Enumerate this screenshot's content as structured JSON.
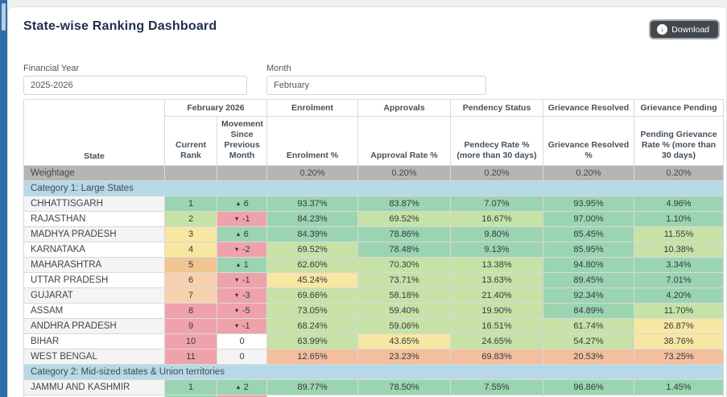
{
  "page": {
    "title": "State-wise Ranking Dashboard",
    "download_label": "Download"
  },
  "filters": {
    "financial_year_label": "Financial Year",
    "financial_year_value": "2025-2026",
    "month_label": "Month",
    "month_value": "February"
  },
  "palette": {
    "teal": "#9bd4b1",
    "palegreen": "#c6e2a7",
    "yellow": "#f7e7a2",
    "orange": "#f0c591",
    "peach": "#f7d0ad",
    "red": "#f0a2aa",
    "salmon": "#f3bf9c",
    "weightage_bg": "#b5b5b5",
    "category_bg": "#b7d9e6",
    "accent_blue": "#2e6da6"
  },
  "table": {
    "header": {
      "state": "State",
      "period": "February 2026",
      "sub": {
        "current_rank": "Current Rank",
        "movement": "Movement Since Previous Month"
      },
      "groups": [
        "Enrolment",
        "Approvals",
        "Pendency Status",
        "Grievance Resolved",
        "Grievance Pending"
      ],
      "metrics": [
        "Enrolment %",
        "Approval Rate %",
        "Pendecy Rate % (more than 30 days)",
        "Grievance Resolved %",
        "Pending Grievance Rate % (more than 30 days)"
      ]
    },
    "weightage": {
      "label": "Weightage",
      "values": [
        "0.20%",
        "0.20%",
        "0.20%",
        "0.20%",
        "0.20%"
      ]
    },
    "categories": [
      {
        "label": "Category 1: Large States",
        "rows": [
          {
            "state": "CHHATTISGARH",
            "rank": "1",
            "rank_color": "teal",
            "movement": "6",
            "movement_dir": "up",
            "movement_color": "teal",
            "cells": [
              {
                "v": "93.37%",
                "c": "teal"
              },
              {
                "v": "83.87%",
                "c": "teal"
              },
              {
                "v": "7.07%",
                "c": "teal"
              },
              {
                "v": "93.95%",
                "c": "teal"
              },
              {
                "v": "4.96%",
                "c": "teal"
              }
            ]
          },
          {
            "state": "RAJASTHAN",
            "rank": "2",
            "rank_color": "palegreen",
            "movement": "-1",
            "movement_dir": "down",
            "movement_color": "red",
            "cells": [
              {
                "v": "84.23%",
                "c": "teal"
              },
              {
                "v": "69.52%",
                "c": "palegreen"
              },
              {
                "v": "16.67%",
                "c": "palegreen"
              },
              {
                "v": "97.00%",
                "c": "teal"
              },
              {
                "v": "1.10%",
                "c": "teal"
              }
            ]
          },
          {
            "state": "MADHYA PRADESH",
            "rank": "3",
            "rank_color": "yellow",
            "movement": "6",
            "movement_dir": "up",
            "movement_color": "teal",
            "cells": [
              {
                "v": "84.39%",
                "c": "teal"
              },
              {
                "v": "78.86%",
                "c": "teal"
              },
              {
                "v": "9.80%",
                "c": "teal"
              },
              {
                "v": "85.45%",
                "c": "teal"
              },
              {
                "v": "11.55%",
                "c": "palegreen"
              }
            ]
          },
          {
            "state": "KARNATAKA",
            "rank": "4",
            "rank_color": "yellow",
            "movement": "-2",
            "movement_dir": "down",
            "movement_color": "red",
            "cells": [
              {
                "v": "69.52%",
                "c": "palegreen"
              },
              {
                "v": "78.48%",
                "c": "teal"
              },
              {
                "v": "9.13%",
                "c": "teal"
              },
              {
                "v": "85.95%",
                "c": "teal"
              },
              {
                "v": "10.38%",
                "c": "palegreen"
              }
            ]
          },
          {
            "state": "MAHARASHTRA",
            "rank": "5",
            "rank_color": "orange",
            "movement": "1",
            "movement_dir": "up",
            "movement_color": "teal",
            "cells": [
              {
                "v": "62.60%",
                "c": "palegreen"
              },
              {
                "v": "70.30%",
                "c": "palegreen"
              },
              {
                "v": "13.38%",
                "c": "palegreen"
              },
              {
                "v": "94.80%",
                "c": "teal"
              },
              {
                "v": "3.34%",
                "c": "teal"
              }
            ]
          },
          {
            "state": "UTTAR PRADESH",
            "rank": "6",
            "rank_color": "peach",
            "movement": "-1",
            "movement_dir": "down",
            "movement_color": "red",
            "cells": [
              {
                "v": "45.24%",
                "c": "yellow"
              },
              {
                "v": "73.71%",
                "c": "palegreen"
              },
              {
                "v": "13.63%",
                "c": "palegreen"
              },
              {
                "v": "89.45%",
                "c": "teal"
              },
              {
                "v": "7.01%",
                "c": "teal"
              }
            ]
          },
          {
            "state": "GUJARAT",
            "rank": "7",
            "rank_color": "peach",
            "movement": "-3",
            "movement_dir": "down",
            "movement_color": "red",
            "cells": [
              {
                "v": "69.66%",
                "c": "palegreen"
              },
              {
                "v": "58.18%",
                "c": "palegreen"
              },
              {
                "v": "21.40%",
                "c": "palegreen"
              },
              {
                "v": "92.34%",
                "c": "teal"
              },
              {
                "v": "4.20%",
                "c": "teal"
              }
            ]
          },
          {
            "state": "ASSAM",
            "rank": "8",
            "rank_color": "red",
            "movement": "-5",
            "movement_dir": "down",
            "movement_color": "red",
            "cells": [
              {
                "v": "73.05%",
                "c": "palegreen"
              },
              {
                "v": "59.40%",
                "c": "palegreen"
              },
              {
                "v": "19.90%",
                "c": "palegreen"
              },
              {
                "v": "84.89%",
                "c": "teal"
              },
              {
                "v": "11.70%",
                "c": "palegreen"
              }
            ]
          },
          {
            "state": "ANDHRA PRADESH",
            "rank": "9",
            "rank_color": "red",
            "movement": "-1",
            "movement_dir": "down",
            "movement_color": "red",
            "cells": [
              {
                "v": "68.24%",
                "c": "palegreen"
              },
              {
                "v": "59.06%",
                "c": "palegreen"
              },
              {
                "v": "16.51%",
                "c": "palegreen"
              },
              {
                "v": "61.74%",
                "c": "palegreen"
              },
              {
                "v": "26.87%",
                "c": "yellow"
              }
            ]
          },
          {
            "state": "BIHAR",
            "rank": "10",
            "rank_color": "red",
            "movement": "0",
            "movement_dir": "none",
            "movement_color": "none",
            "cells": [
              {
                "v": "63.99%",
                "c": "palegreen"
              },
              {
                "v": "43.65%",
                "c": "yellow"
              },
              {
                "v": "24.65%",
                "c": "palegreen"
              },
              {
                "v": "54.27%",
                "c": "palegreen"
              },
              {
                "v": "38.76%",
                "c": "yellow"
              }
            ]
          },
          {
            "state": "WEST BENGAL",
            "rank": "11",
            "rank_color": "red",
            "movement": "0",
            "movement_dir": "none",
            "movement_color": "none",
            "cells": [
              {
                "v": "12.65%",
                "c": "salmon"
              },
              {
                "v": "23.23%",
                "c": "salmon"
              },
              {
                "v": "69.83%",
                "c": "salmon"
              },
              {
                "v": "20.53%",
                "c": "salmon"
              },
              {
                "v": "73.25%",
                "c": "salmon"
              }
            ]
          }
        ]
      },
      {
        "label": "Category 2: Mid-sized states & Union territories",
        "rows": [
          {
            "state": "JAMMU AND KASHMIR",
            "rank": "1",
            "rank_color": "teal",
            "movement": "2",
            "movement_dir": "up",
            "movement_color": "teal",
            "cells": [
              {
                "v": "89.77%",
                "c": "teal"
              },
              {
                "v": "78.50%",
                "c": "teal"
              },
              {
                "v": "7.55%",
                "c": "teal"
              },
              {
                "v": "96.86%",
                "c": "teal"
              },
              {
                "v": "1.45%",
                "c": "teal"
              }
            ]
          }
        ]
      }
    ],
    "partial_row": {
      "rank_color": "teal",
      "movement_color": "red"
    }
  }
}
